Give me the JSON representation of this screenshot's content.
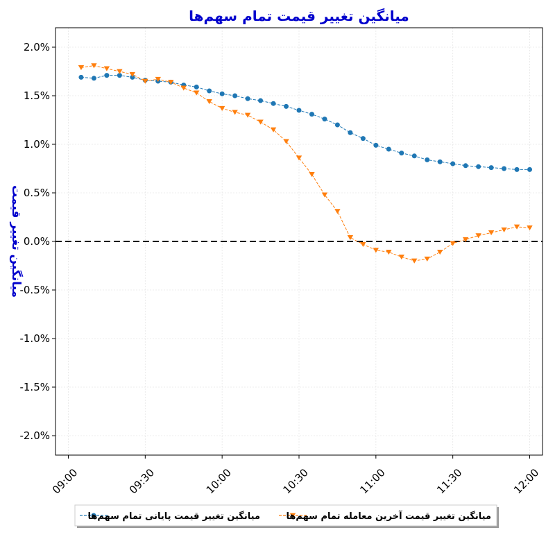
{
  "chart_data": {
    "type": "line",
    "title": "میانگین تغییر قیمت تمام سهم‌ها",
    "ylabel": "میانگین تغییر قیمت",
    "xlabel": "",
    "ylim": [
      -2.2,
      2.2
    ],
    "yticks": [
      -2.0,
      -1.5,
      -1.0,
      -0.5,
      0.0,
      0.5,
      1.0,
      1.5,
      2.0
    ],
    "ytick_labels": [
      "-2.0%",
      "-1.5%",
      "-1.0%",
      "-0.5%",
      "0.0%",
      "0.5%",
      "1.0%",
      "1.5%",
      "2.0%"
    ],
    "xlim": [
      "08:55",
      "12:05"
    ],
    "xticks": [
      "09:00",
      "09:30",
      "10:00",
      "10:30",
      "11:00",
      "11:30",
      "12:00"
    ],
    "grid": true,
    "reference_line": {
      "y": 0,
      "style": "dashed",
      "color": "#000000"
    },
    "legend_placement": "below",
    "x": [
      "09:05",
      "09:10",
      "09:15",
      "09:20",
      "09:25",
      "09:30",
      "09:35",
      "09:40",
      "09:45",
      "09:50",
      "09:55",
      "10:00",
      "10:05",
      "10:10",
      "10:15",
      "10:20",
      "10:25",
      "10:30",
      "10:35",
      "10:40",
      "10:45",
      "10:50",
      "10:55",
      "11:00",
      "11:05",
      "11:10",
      "11:15",
      "11:20",
      "11:25",
      "11:30",
      "11:35",
      "11:40",
      "11:45",
      "11:50",
      "11:55",
      "12:00"
    ],
    "series": [
      {
        "name": "میانگین تغییر قیمت پایانی تمام سهم‌ها",
        "color": "#1f77b4",
        "marker": "circle",
        "values": [
          1.69,
          1.68,
          1.71,
          1.71,
          1.69,
          1.66,
          1.65,
          1.64,
          1.61,
          1.59,
          1.55,
          1.52,
          1.5,
          1.47,
          1.45,
          1.42,
          1.39,
          1.35,
          1.31,
          1.26,
          1.2,
          1.12,
          1.06,
          0.99,
          0.95,
          0.91,
          0.88,
          0.84,
          0.82,
          0.8,
          0.78,
          0.77,
          0.76,
          0.75,
          0.74,
          0.74
        ]
      },
      {
        "name": "میانگین تغییر قیمت آخرین معامله تمام سهم‌ها",
        "color": "#ff7f0e",
        "marker": "triangle-down",
        "values": [
          1.79,
          1.81,
          1.78,
          1.75,
          1.72,
          1.65,
          1.67,
          1.64,
          1.58,
          1.53,
          1.44,
          1.37,
          1.33,
          1.3,
          1.23,
          1.15,
          1.03,
          0.86,
          0.69,
          0.48,
          0.31,
          0.04,
          -0.03,
          -0.09,
          -0.11,
          -0.16,
          -0.2,
          -0.18,
          -0.11,
          -0.02,
          0.02,
          0.06,
          0.09,
          0.12,
          0.15,
          0.14
        ]
      }
    ]
  }
}
